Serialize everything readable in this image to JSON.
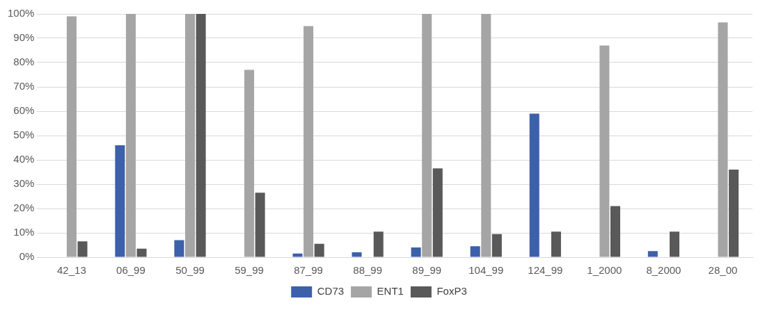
{
  "chart_data": {
    "type": "bar",
    "categories": [
      "42_13",
      "06_99",
      "50_99",
      "59_99",
      "87_99",
      "88_99",
      "89_99",
      "104_99",
      "124_99",
      "1_2000",
      "8_2000",
      "28_00"
    ],
    "series": [
      {
        "name": "CD73",
        "color": "#3c60aa",
        "values": [
          0,
          46,
          7,
          0,
          1.5,
          2,
          4,
          4.5,
          59,
          0,
          2.5,
          0
        ]
      },
      {
        "name": "ENT1",
        "color": "#a5a5a5",
        "values": [
          99,
          100,
          100,
          77,
          95,
          0,
          100,
          100,
          0,
          87,
          0,
          96.5
        ]
      },
      {
        "name": "FoxP3",
        "color": "#595959",
        "values": [
          6.5,
          3.5,
          100,
          26.5,
          5.5,
          10.5,
          36.5,
          9.5,
          10.5,
          21,
          10.5,
          36
        ]
      }
    ],
    "ylim": [
      0,
      100
    ],
    "yticks": [
      {
        "value": 0,
        "label": "0%"
      },
      {
        "value": 10,
        "label": "10%"
      },
      {
        "value": 20,
        "label": "20%"
      },
      {
        "value": 30,
        "label": "30%"
      },
      {
        "value": 40,
        "label": "40%"
      },
      {
        "value": 50,
        "label": "50%"
      },
      {
        "value": 60,
        "label": "60%"
      },
      {
        "value": 70,
        "label": "70%"
      },
      {
        "value": 80,
        "label": "80%"
      },
      {
        "value": 90,
        "label": "90%"
      },
      {
        "value": 100,
        "label": "100%"
      }
    ],
    "grid": "y",
    "legend": "bottom"
  }
}
